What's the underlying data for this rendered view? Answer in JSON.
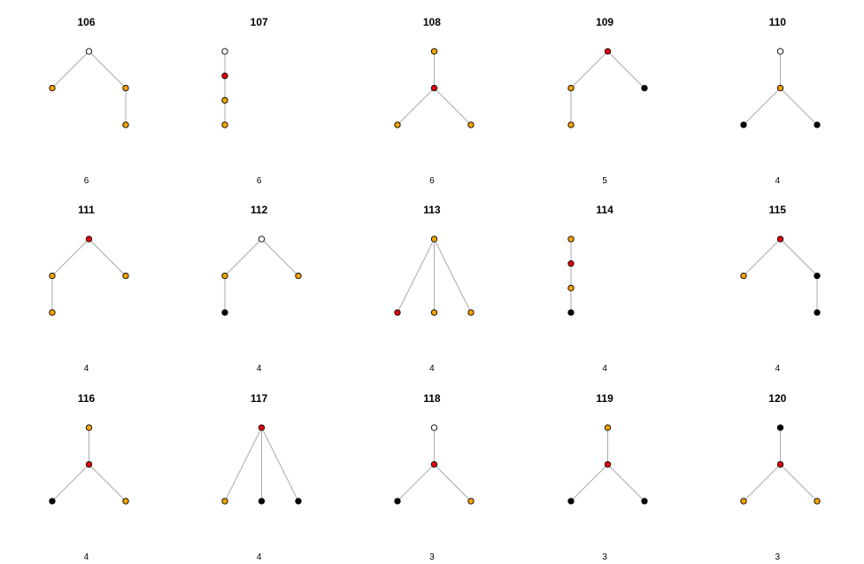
{
  "palette": {
    "white": "#ffffff",
    "orange": "#f5a300",
    "red": "#e8000b",
    "black": "#000000",
    "edge": "#aaaaaa",
    "outline": "#000000"
  },
  "panels": [
    {
      "title": "106",
      "count": "6",
      "nodes": [
        {
          "x": 0.5,
          "y": 0,
          "c": "white"
        },
        {
          "x": 0,
          "y": 1,
          "c": "orange"
        },
        {
          "x": 1,
          "y": 1,
          "c": "orange"
        },
        {
          "x": 1,
          "y": 2,
          "c": "orange"
        }
      ],
      "edges": [
        [
          0,
          1
        ],
        [
          0,
          2
        ],
        [
          2,
          3
        ]
      ]
    },
    {
      "title": "107",
      "count": "6",
      "nodes": [
        {
          "x": 0,
          "y": 0,
          "c": "white"
        },
        {
          "x": 0,
          "y": 0.667,
          "c": "red"
        },
        {
          "x": 0,
          "y": 1.333,
          "c": "orange"
        },
        {
          "x": 0,
          "y": 2,
          "c": "orange"
        }
      ],
      "edges": [
        [
          0,
          1
        ],
        [
          1,
          2
        ],
        [
          2,
          3
        ]
      ]
    },
    {
      "title": "108",
      "count": "6",
      "nodes": [
        {
          "x": 0.5,
          "y": 0,
          "c": "orange"
        },
        {
          "x": 0.5,
          "y": 1,
          "c": "red"
        },
        {
          "x": 0,
          "y": 2,
          "c": "orange"
        },
        {
          "x": 1,
          "y": 2,
          "c": "orange"
        }
      ],
      "edges": [
        [
          0,
          1
        ],
        [
          1,
          2
        ],
        [
          1,
          3
        ]
      ]
    },
    {
      "title": "109",
      "count": "5",
      "nodes": [
        {
          "x": 0.5,
          "y": 0,
          "c": "red"
        },
        {
          "x": 0,
          "y": 1,
          "c": "orange"
        },
        {
          "x": 1,
          "y": 1,
          "c": "black"
        },
        {
          "x": 0,
          "y": 2,
          "c": "orange"
        }
      ],
      "edges": [
        [
          0,
          1
        ],
        [
          0,
          2
        ],
        [
          1,
          3
        ]
      ]
    },
    {
      "title": "110",
      "count": "4",
      "nodes": [
        {
          "x": 0.5,
          "y": 0,
          "c": "white"
        },
        {
          "x": 0.5,
          "y": 1,
          "c": "orange"
        },
        {
          "x": 0,
          "y": 2,
          "c": "black"
        },
        {
          "x": 1,
          "y": 2,
          "c": "black"
        }
      ],
      "edges": [
        [
          0,
          1
        ],
        [
          1,
          2
        ],
        [
          1,
          3
        ]
      ]
    },
    {
      "title": "111",
      "count": "4",
      "nodes": [
        {
          "x": 0.5,
          "y": 0,
          "c": "red"
        },
        {
          "x": 0,
          "y": 1,
          "c": "orange"
        },
        {
          "x": 1,
          "y": 1,
          "c": "orange"
        },
        {
          "x": 0,
          "y": 2,
          "c": "orange"
        }
      ],
      "edges": [
        [
          0,
          1
        ],
        [
          0,
          2
        ],
        [
          1,
          3
        ]
      ]
    },
    {
      "title": "112",
      "count": "4",
      "nodes": [
        {
          "x": 0.5,
          "y": 0,
          "c": "white"
        },
        {
          "x": 0,
          "y": 1,
          "c": "orange"
        },
        {
          "x": 1,
          "y": 1,
          "c": "orange"
        },
        {
          "x": 0,
          "y": 2,
          "c": "black"
        }
      ],
      "edges": [
        [
          0,
          1
        ],
        [
          0,
          2
        ],
        [
          1,
          3
        ]
      ]
    },
    {
      "title": "113",
      "count": "4",
      "nodes": [
        {
          "x": 0.5,
          "y": 0,
          "c": "orange"
        },
        {
          "x": 0,
          "y": 2,
          "c": "red"
        },
        {
          "x": 0.5,
          "y": 2,
          "c": "orange"
        },
        {
          "x": 1,
          "y": 2,
          "c": "orange"
        }
      ],
      "edges": [
        [
          0,
          1
        ],
        [
          0,
          2
        ],
        [
          0,
          3
        ]
      ]
    },
    {
      "title": "114",
      "count": "4",
      "nodes": [
        {
          "x": 0,
          "y": 0,
          "c": "orange"
        },
        {
          "x": 0,
          "y": 0.667,
          "c": "red"
        },
        {
          "x": 0,
          "y": 1.333,
          "c": "orange"
        },
        {
          "x": 0,
          "y": 2,
          "c": "black"
        }
      ],
      "edges": [
        [
          0,
          1
        ],
        [
          1,
          2
        ],
        [
          2,
          3
        ]
      ]
    },
    {
      "title": "115",
      "count": "4",
      "nodes": [
        {
          "x": 0.5,
          "y": 0,
          "c": "red"
        },
        {
          "x": 0,
          "y": 1,
          "c": "orange"
        },
        {
          "x": 1,
          "y": 1,
          "c": "black"
        },
        {
          "x": 1,
          "y": 2,
          "c": "black"
        }
      ],
      "edges": [
        [
          0,
          1
        ],
        [
          0,
          2
        ],
        [
          2,
          3
        ]
      ]
    },
    {
      "title": "116",
      "count": "4",
      "nodes": [
        {
          "x": 0.5,
          "y": 0,
          "c": "orange"
        },
        {
          "x": 0.5,
          "y": 1,
          "c": "red"
        },
        {
          "x": 0,
          "y": 2,
          "c": "black"
        },
        {
          "x": 1,
          "y": 2,
          "c": "orange"
        }
      ],
      "edges": [
        [
          0,
          1
        ],
        [
          1,
          2
        ],
        [
          1,
          3
        ]
      ]
    },
    {
      "title": "117",
      "count": "4",
      "nodes": [
        {
          "x": 0.5,
          "y": 0,
          "c": "red"
        },
        {
          "x": 0,
          "y": 2,
          "c": "orange"
        },
        {
          "x": 0.5,
          "y": 2,
          "c": "black"
        },
        {
          "x": 1,
          "y": 2,
          "c": "black"
        }
      ],
      "edges": [
        [
          0,
          1
        ],
        [
          0,
          2
        ],
        [
          0,
          3
        ]
      ]
    },
    {
      "title": "118",
      "count": "3",
      "nodes": [
        {
          "x": 0.5,
          "y": 0,
          "c": "white"
        },
        {
          "x": 0.5,
          "y": 1,
          "c": "red"
        },
        {
          "x": 0,
          "y": 2,
          "c": "black"
        },
        {
          "x": 1,
          "y": 2,
          "c": "orange"
        }
      ],
      "edges": [
        [
          0,
          1
        ],
        [
          1,
          2
        ],
        [
          1,
          3
        ]
      ]
    },
    {
      "title": "119",
      "count": "3",
      "nodes": [
        {
          "x": 0.5,
          "y": 0,
          "c": "orange"
        },
        {
          "x": 0.5,
          "y": 1,
          "c": "red"
        },
        {
          "x": 0,
          "y": 2,
          "c": "black"
        },
        {
          "x": 1,
          "y": 2,
          "c": "black"
        }
      ],
      "edges": [
        [
          0,
          1
        ],
        [
          1,
          2
        ],
        [
          1,
          3
        ]
      ]
    },
    {
      "title": "120",
      "count": "3",
      "nodes": [
        {
          "x": 0.5,
          "y": 0,
          "c": "black"
        },
        {
          "x": 0.5,
          "y": 1,
          "c": "red"
        },
        {
          "x": 0,
          "y": 2,
          "c": "orange"
        },
        {
          "x": 1,
          "y": 2,
          "c": "orange"
        }
      ],
      "edges": [
        [
          0,
          1
        ],
        [
          1,
          2
        ],
        [
          1,
          3
        ]
      ]
    }
  ]
}
